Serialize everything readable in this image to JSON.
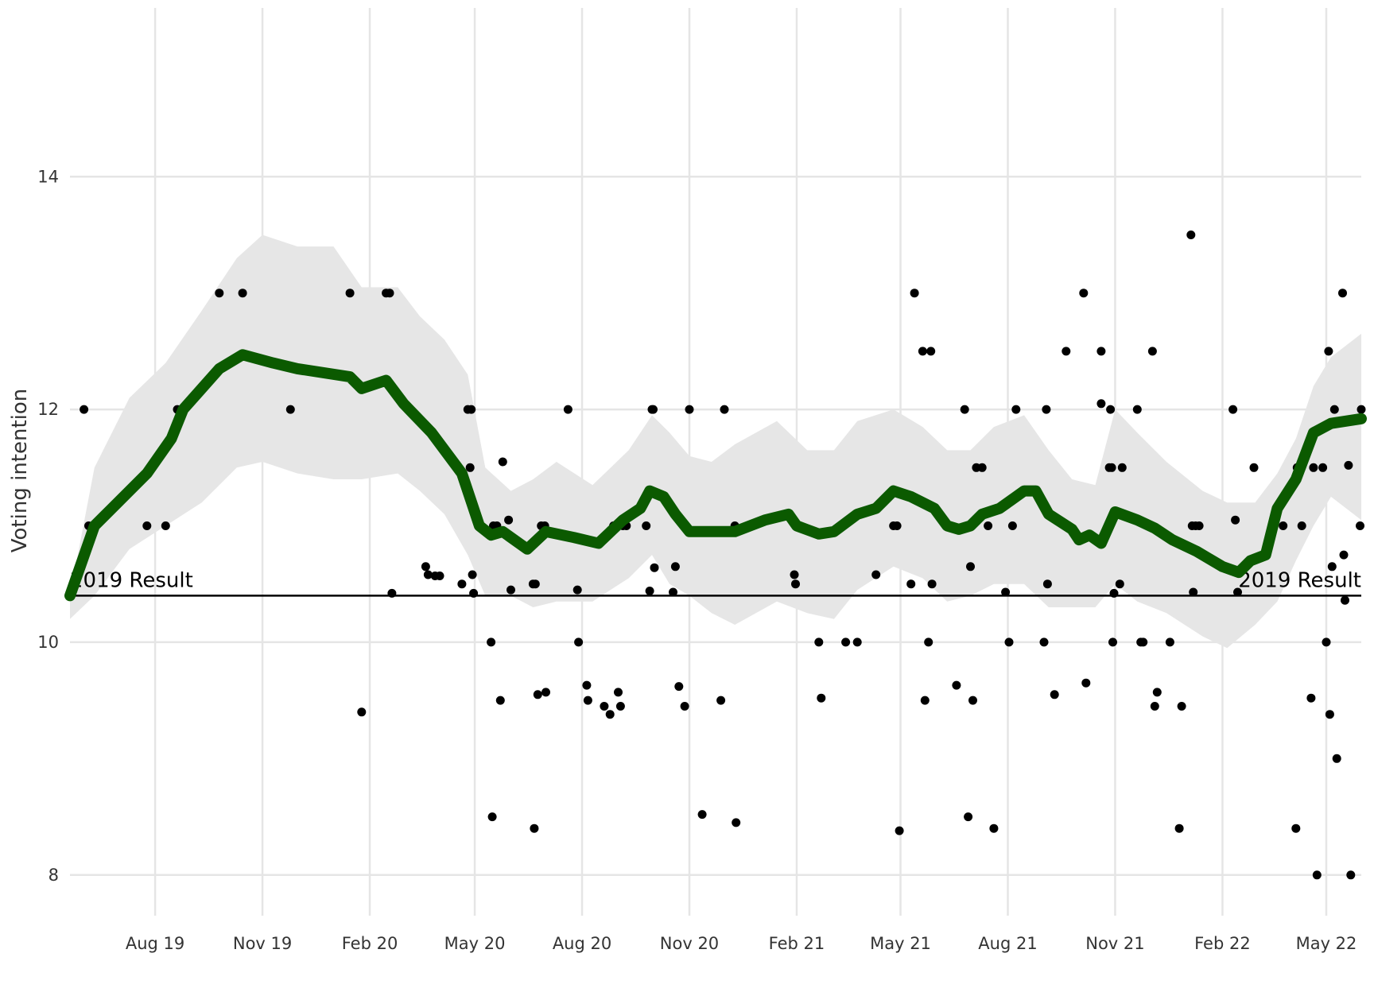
{
  "chart_data": {
    "type": "scatter",
    "title": "",
    "xlabel": "",
    "ylabel": "Voting intention",
    "x_tick_labels": [
      {
        "date": "2019-08-01",
        "label": "Aug 19"
      },
      {
        "date": "2019-11-01",
        "label": "Nov 19"
      },
      {
        "date": "2020-02-01",
        "label": "Feb 20"
      },
      {
        "date": "2020-05-01",
        "label": "May 20"
      },
      {
        "date": "2020-08-01",
        "label": "Aug 20"
      },
      {
        "date": "2020-11-01",
        "label": "Nov 20"
      },
      {
        "date": "2021-02-01",
        "label": "Feb 21"
      },
      {
        "date": "2021-05-01",
        "label": "May 21"
      },
      {
        "date": "2021-08-01",
        "label": "Aug 21"
      },
      {
        "date": "2021-11-01",
        "label": "Nov 21"
      },
      {
        "date": "2022-02-01",
        "label": "Feb 22"
      },
      {
        "date": "2022-05-01",
        "label": "May 22"
      }
    ],
    "y_ticks": [
      8,
      10,
      12,
      14
    ],
    "xlim": [
      "2019-05-20",
      "2022-05-31"
    ],
    "ylim": [
      7.65,
      15.45
    ],
    "grid": true,
    "colors": {
      "trend": "#0b5a00",
      "band": "#e6e6e6",
      "points": "#000000",
      "reference": "#000000",
      "grid": "#e5e5e5"
    },
    "reference_line": {
      "value": 10.4,
      "label_left": "2019 Result",
      "label_right": "2019 Result"
    },
    "trend": [
      [
        "2019-05-20",
        10.4
      ],
      [
        "2019-06-10",
        11.0
      ],
      [
        "2019-07-10",
        11.3
      ],
      [
        "2019-07-25",
        11.45
      ],
      [
        "2019-08-15",
        11.75
      ],
      [
        "2019-08-25",
        12.0
      ],
      [
        "2019-09-25",
        12.35
      ],
      [
        "2019-10-15",
        12.47
      ],
      [
        "2019-11-10",
        12.4
      ],
      [
        "2019-12-01",
        12.35
      ],
      [
        "2020-01-15",
        12.28
      ],
      [
        "2020-01-25",
        12.18
      ],
      [
        "2020-02-15",
        12.25
      ],
      [
        "2020-03-01",
        12.05
      ],
      [
        "2020-03-25",
        11.8
      ],
      [
        "2020-04-20",
        11.45
      ],
      [
        "2020-05-05",
        11.0
      ],
      [
        "2020-05-15",
        10.92
      ],
      [
        "2020-05-25",
        10.95
      ],
      [
        "2020-06-15",
        10.8
      ],
      [
        "2020-07-01",
        10.95
      ],
      [
        "2020-07-25",
        10.9
      ],
      [
        "2020-08-15",
        10.85
      ],
      [
        "2020-09-05",
        11.05
      ],
      [
        "2020-09-20",
        11.15
      ],
      [
        "2020-09-28",
        11.3
      ],
      [
        "2020-10-10",
        11.25
      ],
      [
        "2020-10-20",
        11.1
      ],
      [
        "2020-11-01",
        10.95
      ],
      [
        "2020-11-25",
        10.95
      ],
      [
        "2020-12-10",
        10.95
      ],
      [
        "2021-01-05",
        11.05
      ],
      [
        "2021-01-25",
        11.1
      ],
      [
        "2021-02-01",
        11.0
      ],
      [
        "2021-02-20",
        10.93
      ],
      [
        "2021-03-05",
        10.95
      ],
      [
        "2021-03-25",
        11.1
      ],
      [
        "2021-04-10",
        11.15
      ],
      [
        "2021-04-25",
        11.3
      ],
      [
        "2021-05-10",
        11.25
      ],
      [
        "2021-05-30",
        11.15
      ],
      [
        "2021-06-10",
        11.0
      ],
      [
        "2021-06-20",
        10.97
      ],
      [
        "2021-06-30",
        11.0
      ],
      [
        "2021-07-10",
        11.1
      ],
      [
        "2021-07-25",
        11.15
      ],
      [
        "2021-08-15",
        11.3
      ],
      [
        "2021-08-25",
        11.3
      ],
      [
        "2021-09-05",
        11.1
      ],
      [
        "2021-09-25",
        10.97
      ],
      [
        "2021-10-01",
        10.88
      ],
      [
        "2021-10-10",
        10.92
      ],
      [
        "2021-10-20",
        10.85
      ],
      [
        "2021-11-01",
        11.12
      ],
      [
        "2021-11-20",
        11.05
      ],
      [
        "2021-12-05",
        10.98
      ],
      [
        "2021-12-20",
        10.88
      ],
      [
        "2022-01-10",
        10.78
      ],
      [
        "2022-02-01",
        10.65
      ],
      [
        "2022-02-15",
        10.6
      ],
      [
        "2022-02-25",
        10.7
      ],
      [
        "2022-03-10",
        10.75
      ],
      [
        "2022-03-20",
        11.15
      ],
      [
        "2022-04-05",
        11.4
      ],
      [
        "2022-04-20",
        11.8
      ],
      [
        "2022-05-05",
        11.88
      ],
      [
        "2022-05-31",
        11.92
      ]
    ],
    "band": [
      [
        "2019-05-20",
        10.2,
        10.4
      ],
      [
        "2019-06-10",
        10.4,
        11.5
      ],
      [
        "2019-07-10",
        10.8,
        12.1
      ],
      [
        "2019-08-10",
        11.0,
        12.4
      ],
      [
        "2019-09-10",
        11.2,
        12.85
      ],
      [
        "2019-10-10",
        11.5,
        13.3
      ],
      [
        "2019-11-01",
        11.55,
        13.5
      ],
      [
        "2019-12-01",
        11.45,
        13.4
      ],
      [
        "2020-01-01",
        11.4,
        13.4
      ],
      [
        "2020-01-25",
        11.4,
        13.05
      ],
      [
        "2020-02-25",
        11.45,
        13.05
      ],
      [
        "2020-03-15",
        11.3,
        12.8
      ],
      [
        "2020-04-05",
        11.1,
        12.6
      ],
      [
        "2020-04-25",
        10.75,
        12.3
      ],
      [
        "2020-05-10",
        10.4,
        11.5
      ],
      [
        "2020-06-01",
        10.4,
        11.3
      ],
      [
        "2020-06-20",
        10.3,
        11.4
      ],
      [
        "2020-07-10",
        10.35,
        11.55
      ],
      [
        "2020-08-10",
        10.35,
        11.35
      ],
      [
        "2020-09-10",
        10.55,
        11.65
      ],
      [
        "2020-09-30",
        10.75,
        11.95
      ],
      [
        "2020-10-15",
        10.5,
        11.8
      ],
      [
        "2020-11-01",
        10.4,
        11.6
      ],
      [
        "2020-11-20",
        10.25,
        11.55
      ],
      [
        "2020-12-10",
        10.15,
        11.7
      ],
      [
        "2021-01-15",
        10.35,
        11.9
      ],
      [
        "2021-02-10",
        10.25,
        11.65
      ],
      [
        "2021-03-05",
        10.2,
        11.65
      ],
      [
        "2021-03-25",
        10.45,
        11.9
      ],
      [
        "2021-04-25",
        10.65,
        12.0
      ],
      [
        "2021-05-20",
        10.55,
        11.85
      ],
      [
        "2021-06-10",
        10.35,
        11.65
      ],
      [
        "2021-06-30",
        10.4,
        11.65
      ],
      [
        "2021-07-20",
        10.5,
        11.85
      ],
      [
        "2021-08-15",
        10.5,
        11.95
      ],
      [
        "2021-09-05",
        10.3,
        11.65
      ],
      [
        "2021-09-25",
        10.3,
        11.4
      ],
      [
        "2021-10-15",
        10.3,
        11.35
      ],
      [
        "2021-11-01",
        10.5,
        12.0
      ],
      [
        "2021-11-20",
        10.35,
        11.8
      ],
      [
        "2021-12-15",
        10.25,
        11.55
      ],
      [
        "2022-01-15",
        10.05,
        11.3
      ],
      [
        "2022-02-05",
        9.95,
        11.2
      ],
      [
        "2022-03-01",
        10.15,
        11.2
      ],
      [
        "2022-03-20",
        10.35,
        11.45
      ],
      [
        "2022-04-05",
        10.7,
        11.75
      ],
      [
        "2022-04-20",
        11.0,
        12.2
      ],
      [
        "2022-05-05",
        11.25,
        12.45
      ],
      [
        "2022-05-31",
        11.05,
        12.65
      ]
    ],
    "points": [
      [
        "2019-06-01",
        12.0
      ],
      [
        "2019-06-05",
        11.0
      ],
      [
        "2019-07-25",
        11.0
      ],
      [
        "2019-08-10",
        11.0
      ],
      [
        "2019-08-20",
        12.0
      ],
      [
        "2019-09-25",
        13.0
      ],
      [
        "2019-10-15",
        13.0
      ],
      [
        "2019-11-25",
        12.0
      ],
      [
        "2020-01-15",
        13.0
      ],
      [
        "2020-01-25",
        9.4
      ],
      [
        "2020-02-15",
        13.0
      ],
      [
        "2020-02-18",
        13.0
      ],
      [
        "2020-02-20",
        10.42
      ],
      [
        "2020-03-20",
        10.65
      ],
      [
        "2020-03-22",
        10.58
      ],
      [
        "2020-03-28",
        10.57
      ],
      [
        "2020-04-01",
        10.57
      ],
      [
        "2020-04-20",
        10.5
      ],
      [
        "2020-04-25",
        12.0
      ],
      [
        "2020-04-27",
        11.5
      ],
      [
        "2020-04-28",
        12.0
      ],
      [
        "2020-04-29",
        10.58
      ],
      [
        "2020-04-30",
        10.42
      ],
      [
        "2020-05-15",
        10.0
      ],
      [
        "2020-05-16",
        8.5
      ],
      [
        "2020-05-17",
        11.0
      ],
      [
        "2020-05-20",
        11.0
      ],
      [
        "2020-05-23",
        9.5
      ],
      [
        "2020-05-25",
        11.55
      ],
      [
        "2020-05-30",
        11.05
      ],
      [
        "2020-06-01",
        10.45
      ],
      [
        "2020-06-20",
        10.5
      ],
      [
        "2020-06-22",
        10.5
      ],
      [
        "2020-06-21",
        8.4
      ],
      [
        "2020-06-24",
        9.55
      ],
      [
        "2020-06-27",
        11.0
      ],
      [
        "2020-06-30",
        11.0
      ],
      [
        "2020-07-01",
        9.57
      ],
      [
        "2020-07-20",
        12.0
      ],
      [
        "2020-07-28",
        10.45
      ],
      [
        "2020-07-29",
        10.0
      ],
      [
        "2020-08-05",
        9.63
      ],
      [
        "2020-08-06",
        9.5
      ],
      [
        "2020-08-20",
        9.45
      ],
      [
        "2020-08-25",
        9.38
      ],
      [
        "2020-08-28",
        11.0
      ],
      [
        "2020-09-01",
        9.57
      ],
      [
        "2020-09-03",
        9.45
      ],
      [
        "2020-09-05",
        11.0
      ],
      [
        "2020-09-08",
        11.0
      ],
      [
        "2020-09-25",
        11.0
      ],
      [
        "2020-09-28",
        10.44
      ],
      [
        "2020-09-30",
        12.0
      ],
      [
        "2020-10-01",
        12.0
      ],
      [
        "2020-10-02",
        10.64
      ],
      [
        "2020-10-18",
        10.43
      ],
      [
        "2020-10-20",
        10.65
      ],
      [
        "2020-10-23",
        9.62
      ],
      [
        "2020-10-28",
        9.45
      ],
      [
        "2020-11-01",
        12.0
      ],
      [
        "2020-11-12",
        8.52
      ],
      [
        "2020-11-28",
        9.5
      ],
      [
        "2020-12-01",
        12.0
      ],
      [
        "2020-12-10",
        11.0
      ],
      [
        "2020-12-11",
        8.45
      ],
      [
        "2021-01-30",
        10.58
      ],
      [
        "2021-01-31",
        10.5
      ],
      [
        "2021-02-20",
        10.0
      ],
      [
        "2021-02-22",
        9.52
      ],
      [
        "2021-03-15",
        10.0
      ],
      [
        "2021-03-25",
        10.0
      ],
      [
        "2021-04-10",
        10.58
      ],
      [
        "2021-04-25",
        11.0
      ],
      [
        "2021-04-28",
        11.0
      ],
      [
        "2021-04-30",
        8.38
      ],
      [
        "2021-05-10",
        10.5
      ],
      [
        "2021-05-13",
        13.0
      ],
      [
        "2021-05-20",
        12.5
      ],
      [
        "2021-05-22",
        9.5
      ],
      [
        "2021-05-25",
        10.0
      ],
      [
        "2021-05-27",
        12.5
      ],
      [
        "2021-05-28",
        10.5
      ],
      [
        "2021-06-18",
        9.63
      ],
      [
        "2021-06-25",
        12.0
      ],
      [
        "2021-06-28",
        8.5
      ],
      [
        "2021-06-30",
        10.65
      ],
      [
        "2021-07-01",
        11.0
      ],
      [
        "2021-07-02",
        9.5
      ],
      [
        "2021-07-05",
        11.5
      ],
      [
        "2021-07-10",
        11.5
      ],
      [
        "2021-07-15",
        11.0
      ],
      [
        "2021-07-20",
        8.4
      ],
      [
        "2021-07-30",
        10.43
      ],
      [
        "2021-08-02",
        10.0
      ],
      [
        "2021-08-05",
        11.0
      ],
      [
        "2021-08-08",
        12.0
      ],
      [
        "2021-09-01",
        10.0
      ],
      [
        "2021-09-03",
        12.0
      ],
      [
        "2021-09-04",
        10.5
      ],
      [
        "2021-09-10",
        9.55
      ],
      [
        "2021-09-20",
        12.5
      ],
      [
        "2021-10-05",
        13.0
      ],
      [
        "2021-10-07",
        9.65
      ],
      [
        "2021-10-20",
        12.5
      ],
      [
        "2021-10-20",
        12.05
      ],
      [
        "2021-10-27",
        11.5
      ],
      [
        "2021-10-28",
        12.0
      ],
      [
        "2021-10-29",
        11.5
      ],
      [
        "2021-10-30",
        10.0
      ],
      [
        "2021-10-31",
        10.42
      ],
      [
        "2021-11-05",
        10.5
      ],
      [
        "2021-11-07",
        11.5
      ],
      [
        "2021-11-20",
        12.0
      ],
      [
        "2021-11-23",
        10.0
      ],
      [
        "2021-11-25",
        10.0
      ],
      [
        "2021-12-03",
        12.5
      ],
      [
        "2021-12-05",
        9.45
      ],
      [
        "2021-12-07",
        9.57
      ],
      [
        "2021-12-18",
        10.0
      ],
      [
        "2021-12-26",
        8.4
      ],
      [
        "2021-12-28",
        9.45
      ],
      [
        "2022-01-05",
        13.5
      ],
      [
        "2022-01-06",
        11.0
      ],
      [
        "2022-01-07",
        10.43
      ],
      [
        "2022-01-09",
        11.0
      ],
      [
        "2022-01-12",
        11.0
      ],
      [
        "2022-02-10",
        12.0
      ],
      [
        "2022-02-12",
        11.05
      ],
      [
        "2022-02-14",
        10.43
      ],
      [
        "2022-02-28",
        11.5
      ],
      [
        "2022-03-25",
        11.0
      ],
      [
        "2022-04-05",
        8.4
      ],
      [
        "2022-04-06",
        11.5
      ],
      [
        "2022-04-10",
        11.0
      ],
      [
        "2022-04-18",
        9.52
      ],
      [
        "2022-04-20",
        11.5
      ],
      [
        "2022-04-23",
        8.0
      ],
      [
        "2022-04-28",
        11.5
      ],
      [
        "2022-05-01",
        10.0
      ],
      [
        "2022-05-03",
        12.5
      ],
      [
        "2022-05-04",
        9.38
      ],
      [
        "2022-05-06",
        10.65
      ],
      [
        "2022-05-08",
        12.0
      ],
      [
        "2022-05-10",
        9.0
      ],
      [
        "2022-05-15",
        13.0
      ],
      [
        "2022-05-16",
        10.75
      ],
      [
        "2022-05-17",
        10.36
      ],
      [
        "2022-05-20",
        11.52
      ],
      [
        "2022-05-22",
        8.0
      ],
      [
        "2022-05-30",
        11.0
      ],
      [
        "2022-05-31",
        12.0
      ]
    ]
  }
}
